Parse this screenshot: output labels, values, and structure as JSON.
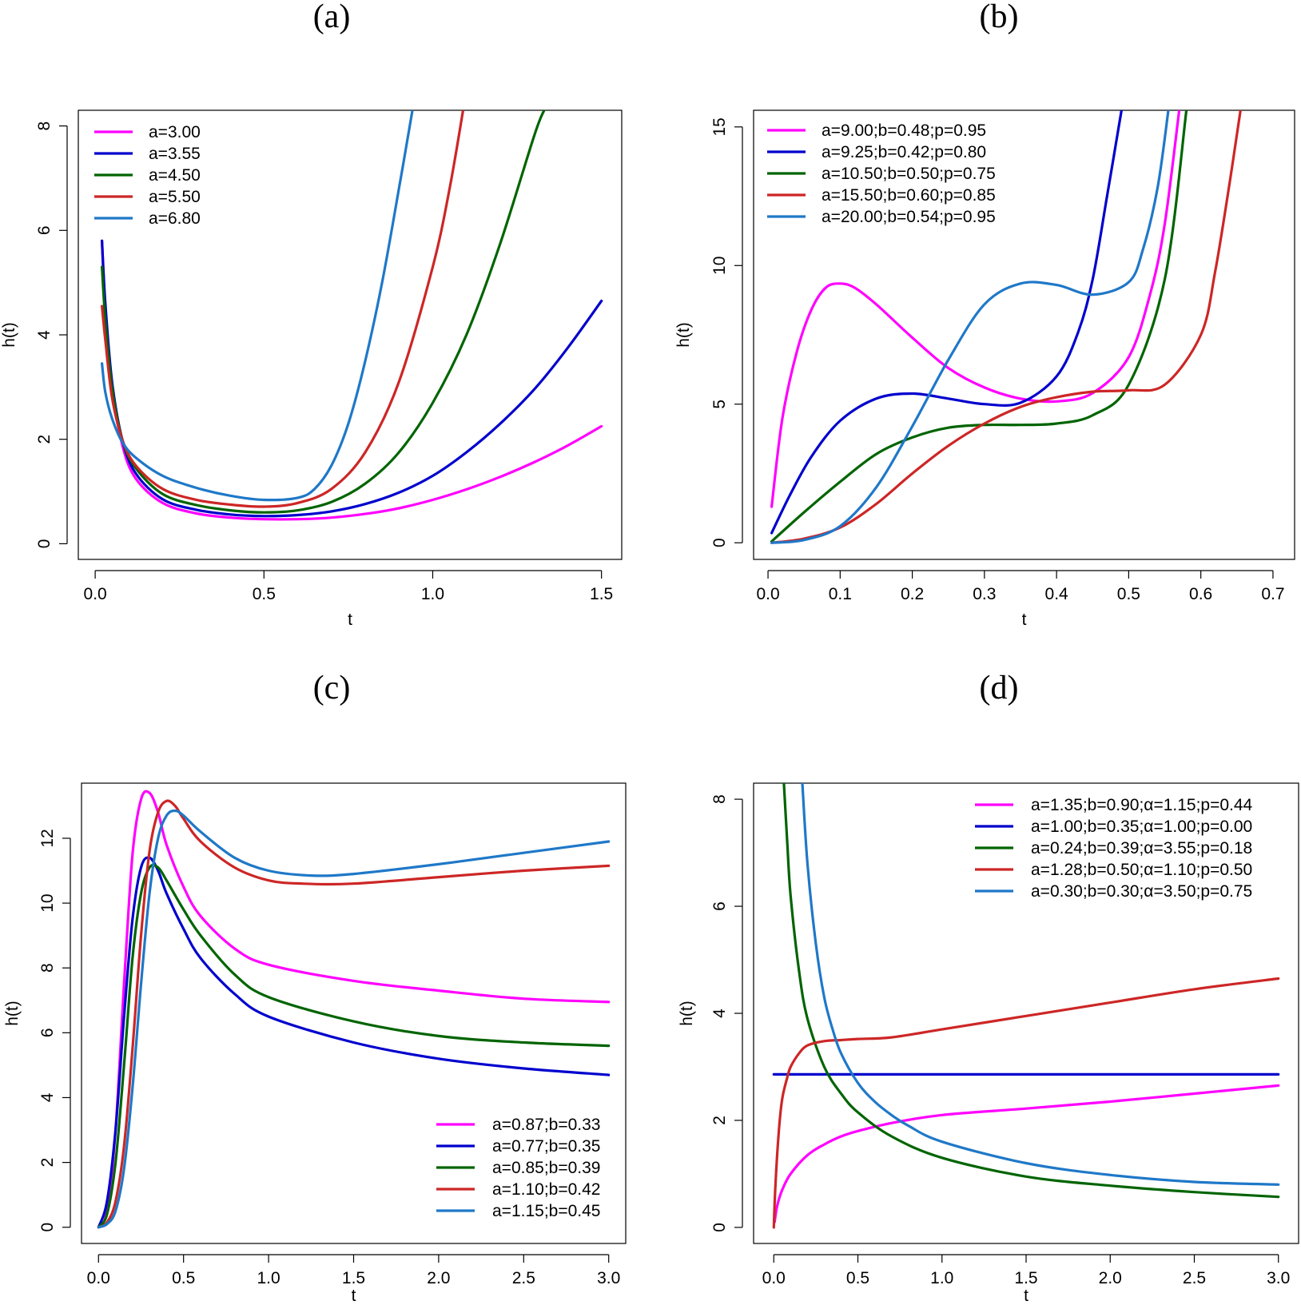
{
  "colors": {
    "magenta": "#ff00ff",
    "blue": "#0000cd",
    "green": "#006400",
    "red": "#cd2626",
    "steelblue": "#1f78c8"
  },
  "chart_data": [
    {
      "panel_label": "(a)",
      "type": "line",
      "xlabel": "t",
      "ylabel": "h(t)",
      "xlim": [
        -0.05,
        1.56
      ],
      "ylim": [
        -0.3,
        8.3
      ],
      "xticks": [
        0,
        0.5,
        1,
        1.5
      ],
      "xtick_labels": [
        "0.0",
        "0.5",
        "1.0",
        "1.5"
      ],
      "yticks": [
        0,
        2,
        4,
        6,
        8
      ],
      "ytick_labels": [
        "0",
        "2",
        "4",
        "6",
        "8"
      ],
      "legend_position": "top-left",
      "series": [
        {
          "name": "a=3.00",
          "color": "#ff00ff",
          "x": [
            0.02,
            0.03,
            0.05,
            0.08,
            0.12,
            0.2,
            0.3,
            0.4,
            0.5,
            0.6,
            0.7,
            0.8,
            0.9,
            1.0,
            1.1,
            1.2,
            1.3,
            1.4,
            1.5
          ],
          "y": [
            5.8,
            4.5,
            3.0,
            1.9,
            1.25,
            0.78,
            0.58,
            0.5,
            0.47,
            0.47,
            0.5,
            0.57,
            0.68,
            0.84,
            1.04,
            1.28,
            1.56,
            1.88,
            2.25
          ]
        },
        {
          "name": "a=3.55",
          "color": "#0000cd",
          "x": [
            0.02,
            0.03,
            0.05,
            0.08,
            0.12,
            0.2,
            0.3,
            0.4,
            0.5,
            0.6,
            0.7,
            0.8,
            0.9,
            1.0,
            1.1,
            1.2,
            1.3,
            1.4,
            1.5
          ],
          "y": [
            5.8,
            4.6,
            3.1,
            2.0,
            1.35,
            0.85,
            0.65,
            0.56,
            0.53,
            0.55,
            0.62,
            0.76,
            0.98,
            1.3,
            1.75,
            2.3,
            2.95,
            3.75,
            4.65
          ]
        },
        {
          "name": "a=4.50",
          "color": "#006400",
          "x": [
            0.02,
            0.03,
            0.05,
            0.08,
            0.12,
            0.2,
            0.3,
            0.4,
            0.5,
            0.6,
            0.7,
            0.8,
            0.9,
            1.0,
            1.1,
            1.2,
            1.3,
            1.33
          ],
          "y": [
            5.3,
            4.3,
            3.0,
            2.0,
            1.45,
            0.95,
            0.74,
            0.64,
            0.6,
            0.64,
            0.8,
            1.15,
            1.75,
            2.7,
            4.0,
            5.75,
            7.8,
            8.3
          ]
        },
        {
          "name": "a=5.50",
          "color": "#cd2626",
          "x": [
            0.02,
            0.03,
            0.05,
            0.08,
            0.12,
            0.2,
            0.3,
            0.4,
            0.5,
            0.6,
            0.7,
            0.8,
            0.9,
            1.0,
            1.05,
            1.09
          ],
          "y": [
            4.55,
            3.9,
            2.8,
            2.0,
            1.5,
            1.05,
            0.84,
            0.75,
            0.71,
            0.78,
            1.05,
            1.75,
            3.1,
            5.3,
            6.8,
            8.3
          ]
        },
        {
          "name": "a=6.80",
          "color": "#1f78c8",
          "x": [
            0.02,
            0.03,
            0.05,
            0.08,
            0.12,
            0.2,
            0.3,
            0.4,
            0.5,
            0.6,
            0.65,
            0.7,
            0.75,
            0.8,
            0.85,
            0.9,
            0.94
          ],
          "y": [
            3.45,
            2.9,
            2.4,
            1.95,
            1.65,
            1.3,
            1.07,
            0.92,
            0.84,
            0.88,
            1.05,
            1.5,
            2.3,
            3.5,
            5.0,
            6.8,
            8.3
          ]
        }
      ]
    },
    {
      "panel_label": "(b)",
      "type": "line",
      "xlabel": "t",
      "ylabel": "h(t)",
      "xlim": [
        -0.02,
        0.73
      ],
      "ylim": [
        -0.6,
        15.6
      ],
      "xticks": [
        0,
        0.1,
        0.2,
        0.3,
        0.4,
        0.5,
        0.6,
        0.7
      ],
      "xtick_labels": [
        "0.0",
        "0.1",
        "0.2",
        "0.3",
        "0.4",
        "0.5",
        "0.6",
        "0.7"
      ],
      "yticks": [
        0,
        5,
        10,
        15
      ],
      "ytick_labels": [
        "0",
        "5",
        "10",
        "15"
      ],
      "legend_position": "top-left",
      "series": [
        {
          "name": "a=9.00;b=0.48;p=0.95",
          "color": "#ff00ff",
          "x": [
            0.005,
            0.02,
            0.04,
            0.06,
            0.08,
            0.1,
            0.12,
            0.15,
            0.2,
            0.25,
            0.3,
            0.35,
            0.4,
            0.45,
            0.5,
            0.53,
            0.55,
            0.57
          ],
          "y": [
            1.3,
            4.5,
            6.9,
            8.4,
            9.2,
            9.35,
            9.2,
            8.6,
            7.4,
            6.3,
            5.6,
            5.2,
            5.1,
            5.4,
            6.7,
            9.0,
            11.5,
            15.6
          ]
        },
        {
          "name": "a=9.25;b=0.42;p=0.80",
          "color": "#0000cd",
          "x": [
            0.005,
            0.03,
            0.06,
            0.1,
            0.15,
            0.2,
            0.25,
            0.3,
            0.35,
            0.4,
            0.43,
            0.45,
            0.47,
            0.49
          ],
          "y": [
            0.35,
            1.7,
            3.1,
            4.4,
            5.2,
            5.38,
            5.2,
            5.0,
            5.05,
            6.0,
            7.6,
            9.5,
            12.5,
            15.6
          ]
        },
        {
          "name": "a=10.50;b=0.50;p=0.75",
          "color": "#006400",
          "x": [
            0.005,
            0.05,
            0.1,
            0.15,
            0.2,
            0.25,
            0.3,
            0.35,
            0.4,
            0.45,
            0.5,
            0.55,
            0.58
          ],
          "y": [
            0.05,
            1.1,
            2.2,
            3.2,
            3.8,
            4.15,
            4.25,
            4.25,
            4.3,
            4.6,
            5.7,
            9.5,
            15.6
          ]
        },
        {
          "name": "a=15.50;b=0.60;p=0.85",
          "color": "#cd2626",
          "x": [
            0.005,
            0.05,
            0.1,
            0.15,
            0.2,
            0.25,
            0.3,
            0.35,
            0.4,
            0.45,
            0.5,
            0.55,
            0.6,
            0.62,
            0.64,
            0.655
          ],
          "y": [
            0,
            0.15,
            0.55,
            1.4,
            2.5,
            3.5,
            4.3,
            4.9,
            5.25,
            5.45,
            5.5,
            5.7,
            7.5,
            9.8,
            13.0,
            15.6
          ]
        },
        {
          "name": "a=20.00;b=0.54;p=0.95",
          "color": "#1f78c8",
          "x": [
            0.005,
            0.05,
            0.1,
            0.15,
            0.2,
            0.25,
            0.3,
            0.35,
            0.4,
            0.45,
            0.5,
            0.52,
            0.54,
            0.555
          ],
          "y": [
            0,
            0.1,
            0.6,
            2.0,
            4.2,
            6.6,
            8.6,
            9.35,
            9.3,
            8.95,
            9.4,
            10.6,
            12.8,
            15.6
          ]
        }
      ]
    },
    {
      "panel_label": "(c)",
      "type": "line",
      "xlabel": "t",
      "ylabel": "h(t)",
      "xlim": [
        -0.1,
        3.1
      ],
      "ylim": [
        -0.5,
        13.7
      ],
      "xticks": [
        0,
        0.5,
        1,
        1.5,
        2,
        2.5,
        3
      ],
      "xtick_labels": [
        "0.0",
        "0.5",
        "1.0",
        "1.5",
        "2.0",
        "2.5",
        "3.0"
      ],
      "yticks": [
        0,
        2,
        4,
        6,
        8,
        10,
        12
      ],
      "ytick_labels": [
        "0",
        "2",
        "4",
        "6",
        "8",
        "10",
        "12"
      ],
      "legend_position": "bottom-right",
      "series": [
        {
          "name": "a=0.87;b=0.33",
          "color": "#ff00ff",
          "x": [
            0,
            0.05,
            0.1,
            0.15,
            0.2,
            0.25,
            0.3,
            0.35,
            0.4,
            0.5,
            0.6,
            0.8,
            1.0,
            1.5,
            2.0,
            2.5,
            3.0
          ],
          "y": [
            0,
            0.5,
            3.0,
            7.5,
            11.5,
            13.2,
            13.4,
            12.8,
            11.8,
            10.5,
            9.6,
            8.6,
            8.1,
            7.6,
            7.3,
            7.05,
            6.95
          ]
        },
        {
          "name": "a=0.77;b=0.35",
          "color": "#0000cd",
          "x": [
            0,
            0.05,
            0.1,
            0.15,
            0.2,
            0.25,
            0.3,
            0.35,
            0.4,
            0.5,
            0.6,
            0.8,
            1.0,
            1.5,
            2.0,
            2.5,
            3.0
          ],
          "y": [
            0,
            0.8,
            3.0,
            6.5,
            9.5,
            11.1,
            11.4,
            11.0,
            10.3,
            9.2,
            8.3,
            7.2,
            6.5,
            5.7,
            5.2,
            4.9,
            4.7
          ]
        },
        {
          "name": "a=0.85;b=0.39",
          "color": "#006400",
          "x": [
            0,
            0.05,
            0.1,
            0.15,
            0.2,
            0.25,
            0.3,
            0.35,
            0.4,
            0.5,
            0.6,
            0.8,
            1.0,
            1.5,
            2.0,
            2.5,
            3.0
          ],
          "y": [
            0,
            0.4,
            2.0,
            5.0,
            8.3,
            10.3,
            11.1,
            11.1,
            10.7,
            9.8,
            9.0,
            7.8,
            7.1,
            6.35,
            5.9,
            5.7,
            5.6
          ]
        },
        {
          "name": "a=1.10;b=0.42",
          "color": "#cd2626",
          "x": [
            0,
            0.05,
            0.1,
            0.15,
            0.2,
            0.25,
            0.3,
            0.35,
            0.4,
            0.45,
            0.5,
            0.6,
            0.8,
            1.0,
            1.2,
            1.5,
            2.0,
            2.5,
            3.0
          ],
          "y": [
            0,
            0.15,
            0.8,
            2.5,
            5.5,
            9.0,
            11.6,
            12.8,
            13.15,
            13.0,
            12.6,
            11.9,
            11.1,
            10.7,
            10.6,
            10.6,
            10.8,
            11.0,
            11.15
          ]
        },
        {
          "name": "a=1.15;b=0.45",
          "color": "#1f78c8",
          "x": [
            0,
            0.05,
            0.1,
            0.15,
            0.2,
            0.25,
            0.3,
            0.35,
            0.4,
            0.45,
            0.5,
            0.6,
            0.8,
            1.0,
            1.25,
            1.5,
            2.0,
            2.5,
            3.0
          ],
          "y": [
            0,
            0.1,
            0.5,
            1.8,
            4.3,
            7.5,
            10.3,
            12.0,
            12.7,
            12.85,
            12.7,
            12.2,
            11.4,
            11.0,
            10.85,
            10.9,
            11.2,
            11.55,
            11.9
          ]
        }
      ]
    },
    {
      "panel_label": "(d)",
      "type": "line",
      "xlabel": "t",
      "ylabel": "h(t)",
      "xlim": [
        -0.12,
        3.12
      ],
      "ylim": [
        -0.3,
        8.3
      ],
      "xticks": [
        0,
        0.5,
        1,
        1.5,
        2,
        2.5,
        3
      ],
      "xtick_labels": [
        "0.0",
        "0.5",
        "1.0",
        "1.5",
        "2.0",
        "2.5",
        "3.0"
      ],
      "yticks": [
        0,
        2,
        4,
        6,
        8
      ],
      "ytick_labels": [
        "0",
        "2",
        "4",
        "6",
        "8"
      ],
      "legend_position": "top-right",
      "series": [
        {
          "name": "a=1.35;b=0.90;α=1.15;p=0.44",
          "color": "#ff00ff",
          "x": [
            0.005,
            0.02,
            0.05,
            0.1,
            0.2,
            0.3,
            0.4,
            0.5,
            0.7,
            1.0,
            1.5,
            2.0,
            2.5,
            3.0
          ],
          "y": [
            0.1,
            0.4,
            0.7,
            1.0,
            1.35,
            1.55,
            1.7,
            1.8,
            1.95,
            2.1,
            2.22,
            2.35,
            2.5,
            2.65
          ]
        },
        {
          "name": "a=1.00;b=0.35;α=1.00;p=0.00",
          "color": "#0000cd",
          "x": [
            0,
            3.0
          ],
          "y": [
            2.86,
            2.86
          ]
        },
        {
          "name": "a=0.24;b=0.39;α=3.55;p=0.18",
          "color": "#006400",
          "x": [
            0.06,
            0.08,
            0.1,
            0.15,
            0.2,
            0.3,
            0.4,
            0.5,
            0.7,
            1.0,
            1.5,
            2.0,
            2.5,
            3.0
          ],
          "y": [
            8.3,
            7.2,
            6.2,
            4.8,
            3.9,
            3.0,
            2.5,
            2.15,
            1.7,
            1.3,
            0.95,
            0.78,
            0.66,
            0.57
          ]
        },
        {
          "name": "a=1.28;b=0.50;α=1.10;p=0.50",
          "color": "#cd2626",
          "x": [
            0,
            0.01,
            0.03,
            0.05,
            0.08,
            0.1,
            0.15,
            0.2,
            0.3,
            0.4,
            0.5,
            0.7,
            1.0,
            1.5,
            2.0,
            2.5,
            3.0
          ],
          "y": [
            0,
            0.8,
            1.8,
            2.4,
            2.8,
            3.0,
            3.25,
            3.4,
            3.48,
            3.5,
            3.52,
            3.55,
            3.7,
            3.95,
            4.2,
            4.45,
            4.65
          ]
        },
        {
          "name": "a=0.30;b=0.30;α=3.50;p=0.75",
          "color": "#1f78c8",
          "x": [
            0.17,
            0.2,
            0.25,
            0.3,
            0.35,
            0.4,
            0.5,
            0.6,
            0.7,
            0.8,
            1.0,
            1.5,
            2.0,
            2.5,
            3.0
          ],
          "y": [
            8.3,
            6.8,
            5.3,
            4.3,
            3.7,
            3.25,
            2.7,
            2.35,
            2.1,
            1.9,
            1.6,
            1.2,
            0.98,
            0.85,
            0.8
          ]
        }
      ]
    }
  ]
}
